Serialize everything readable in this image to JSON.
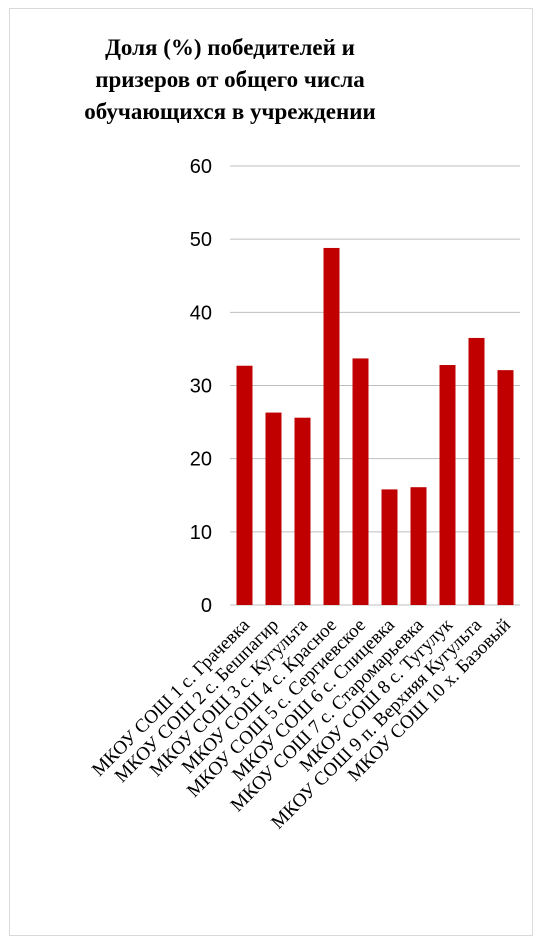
{
  "chart_data": {
    "type": "bar",
    "title": "Доля (%) победителей и\nпризеров от общего числа\nобучающихся в учреждении",
    "xlabel": "",
    "ylabel": "",
    "ylim": [
      0,
      60
    ],
    "yticks": [
      0,
      10,
      20,
      30,
      40,
      50,
      60
    ],
    "grid": true,
    "bar_color": "#c00000",
    "categories": [
      "МКОУ СОШ 1 с. Грачевка",
      "МКОУ СОШ 2 с. Бешпагир",
      "МКОУ СОШ 3 с. Кугульта",
      "МКОУ СОШ 4 с. Красное",
      "МКОУ СОШ 5 с. Сергиевское",
      "МКОУ СОШ 6 с. Спицевка",
      "МКОУ СОШ 7 с. Старомарьевка",
      "МКОУ СОШ 8 с. Тугулук",
      "МКОУ СОШ 9 п. Верхняя Кугульта",
      "МКОУ СОШ 10 х. Базовый"
    ],
    "values": [
      32.7,
      26.3,
      25.6,
      48.8,
      33.7,
      15.8,
      16.1,
      32.8,
      36.5,
      32.1
    ]
  }
}
